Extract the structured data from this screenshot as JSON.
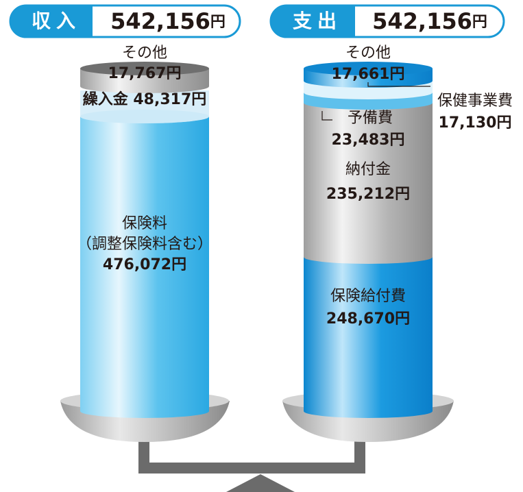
{
  "income": {
    "heading": "収入",
    "total": "542,156",
    "unit": "円",
    "items": [
      {
        "name": "その他",
        "amount": "17,767円"
      },
      {
        "text": "繰入金 48,317円"
      },
      {
        "name": "保険料",
        "note": "（調整保険料含む）",
        "amount": "476,072円"
      }
    ]
  },
  "expense": {
    "heading": "支出",
    "total": "542,156",
    "unit": "円",
    "items": [
      {
        "name": "その他",
        "amount": "17,661円"
      },
      {
        "name": "保健事業費",
        "amount": "17,130円"
      },
      {
        "name": "予備費",
        "amount": "23,483円"
      },
      {
        "name": "納付金",
        "amount": "235,212円"
      },
      {
        "name": "保険給付費",
        "amount": "248,670円"
      }
    ]
  }
}
